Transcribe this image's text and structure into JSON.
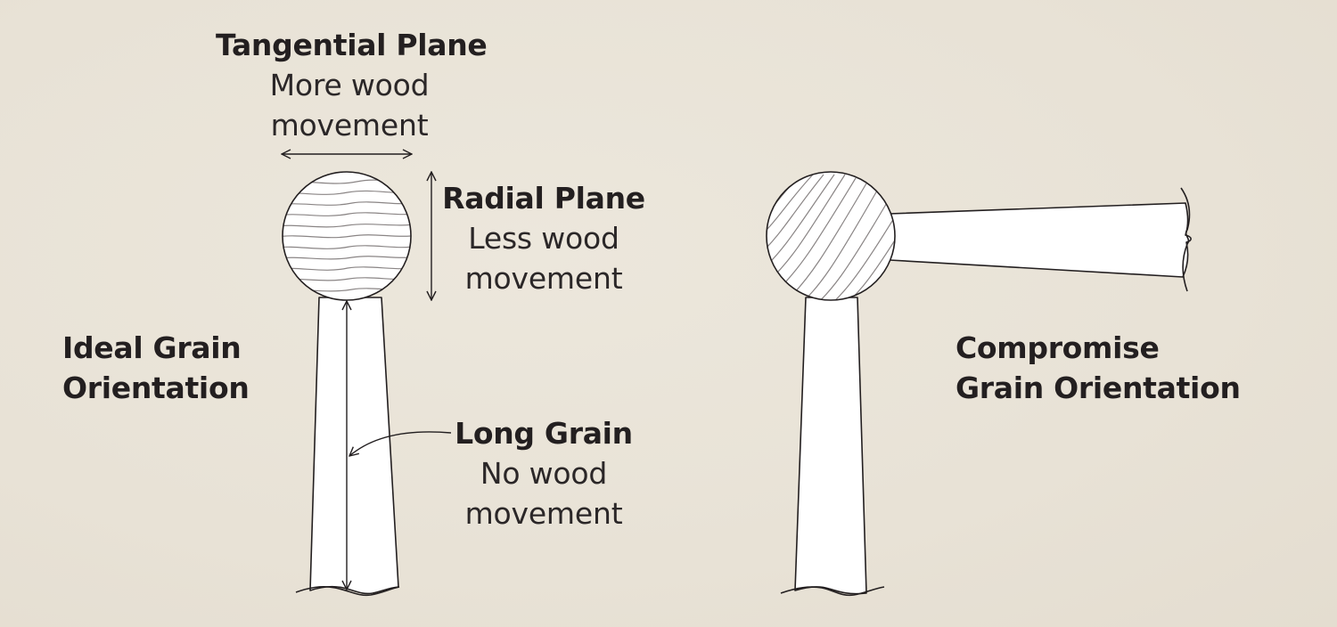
{
  "tangential": {
    "title": "Tangential Plane",
    "line1": "More wood",
    "line2": "movement"
  },
  "radial": {
    "title": "Radial Plane",
    "line1": "Less wood",
    "line2": "movement"
  },
  "long_grain": {
    "title": "Long Grain",
    "line1": "No wood",
    "line2": "movement"
  },
  "ideal": {
    "line1": "Ideal Grain",
    "line2": "Orientation"
  },
  "compromise": {
    "line1": "Compromise",
    "line2": "Grain Orientation"
  },
  "colors": {
    "background": "#e9e4d9",
    "ink": "#231f20",
    "grain": "#8a8585",
    "fill": "#ffffff"
  }
}
